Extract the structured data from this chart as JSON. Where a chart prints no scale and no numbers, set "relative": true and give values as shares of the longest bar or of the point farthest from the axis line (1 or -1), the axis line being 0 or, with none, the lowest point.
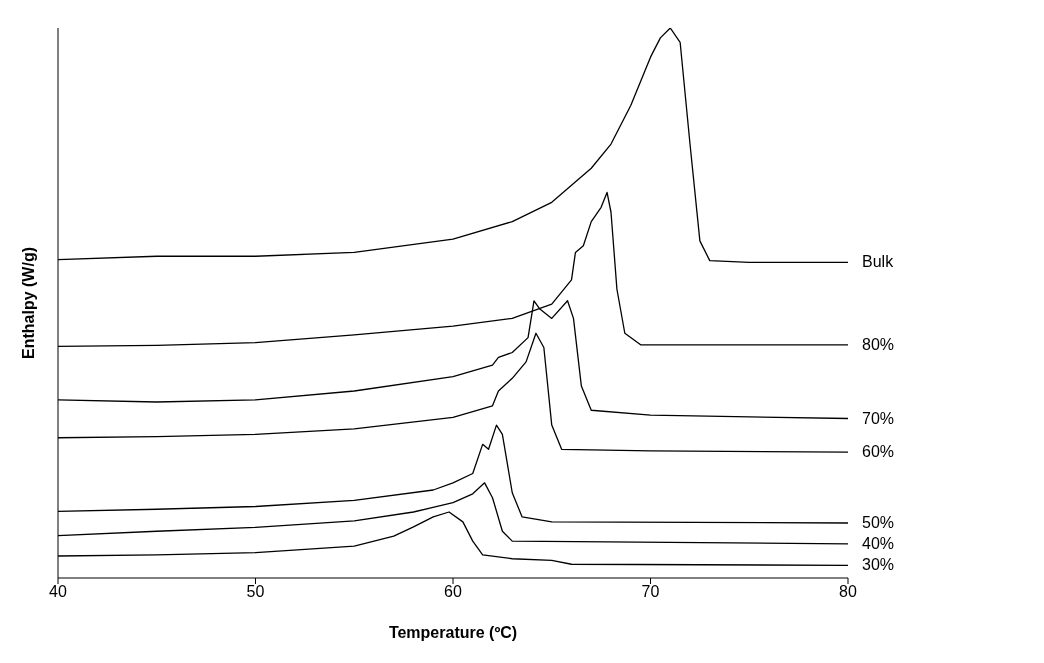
{
  "chart_data": {
    "type": "line",
    "relative": true,
    "xlabel": "Temperature (ºC)",
    "ylabel": "Enthalpy (W/g)",
    "xlim": [
      40,
      80
    ],
    "xticks": [
      40,
      50,
      60,
      70,
      80
    ],
    "grid": false,
    "legend": false,
    "marker": "none",
    "line_style": "solid",
    "series": [
      {
        "name": "Bulk",
        "color": "#000000",
        "x": [
          40,
          45,
          50,
          55,
          60,
          63,
          65,
          67,
          68,
          69,
          70,
          70.5,
          71,
          71.5,
          72,
          72.5,
          73,
          75,
          80
        ],
        "values": [
          0.579,
          0.585,
          0.585,
          0.592,
          0.616,
          0.648,
          0.683,
          0.745,
          0.789,
          0.859,
          0.947,
          0.982,
          1,
          0.974,
          0.789,
          0.613,
          0.577,
          0.574,
          0.574
        ]
      },
      {
        "name": "80%",
        "color": "#000000",
        "x": [
          40,
          45,
          50,
          55,
          60,
          63,
          65,
          66,
          66.2,
          66.6,
          67,
          67.5,
          67.8,
          68,
          68.3,
          68.7,
          69.5,
          72,
          80
        ],
        "values": [
          0.421,
          0.423,
          0.428,
          0.442,
          0.458,
          0.472,
          0.498,
          0.542,
          0.592,
          0.604,
          0.648,
          0.674,
          0.701,
          0.665,
          0.525,
          0.445,
          0.424,
          0.424,
          0.424
        ]
      },
      {
        "name": "70%",
        "color": "#000000",
        "x": [
          40,
          45,
          50,
          55,
          60,
          62,
          62.3,
          63,
          63.8,
          64.1,
          64.4,
          65,
          65.8,
          66.1,
          66.5,
          67,
          70,
          80
        ],
        "values": [
          0.324,
          0.32,
          0.324,
          0.34,
          0.366,
          0.387,
          0.401,
          0.41,
          0.437,
          0.504,
          0.489,
          0.472,
          0.504,
          0.472,
          0.349,
          0.305,
          0.296,
          0.29
        ]
      },
      {
        "name": "60%",
        "color": "#000000",
        "x": [
          40,
          45,
          50,
          55,
          60,
          62,
          62.3,
          63,
          63.7,
          64.2,
          64.6,
          65,
          65.5,
          70,
          80
        ],
        "values": [
          0.255,
          0.257,
          0.261,
          0.271,
          0.292,
          0.313,
          0.34,
          0.363,
          0.393,
          0.445,
          0.419,
          0.278,
          0.234,
          0.231,
          0.229
        ]
      },
      {
        "name": "50%",
        "color": "#000000",
        "x": [
          40,
          45,
          50,
          55,
          59,
          60,
          61,
          61.5,
          61.8,
          62.2,
          62.5,
          63,
          63.5,
          65,
          80
        ],
        "values": [
          0.121,
          0.125,
          0.13,
          0.141,
          0.16,
          0.173,
          0.19,
          0.243,
          0.234,
          0.278,
          0.261,
          0.155,
          0.111,
          0.102,
          0.1
        ]
      },
      {
        "name": "40%",
        "color": "#000000",
        "x": [
          40,
          45,
          50,
          55,
          58,
          60,
          61,
          61.6,
          62,
          62.5,
          63,
          80
        ],
        "values": [
          0.077,
          0.085,
          0.092,
          0.104,
          0.12,
          0.137,
          0.153,
          0.173,
          0.146,
          0.085,
          0.067,
          0.062
        ]
      },
      {
        "name": "30%",
        "color": "#000000",
        "x": [
          40,
          45,
          50,
          55,
          57,
          58,
          59,
          59.8,
          60.5,
          61,
          61.5,
          63,
          65,
          66,
          80
        ],
        "values": [
          0.04,
          0.042,
          0.046,
          0.058,
          0.076,
          0.093,
          0.111,
          0.12,
          0.102,
          0.067,
          0.042,
          0.035,
          0.032,
          0.025,
          0.023
        ]
      }
    ]
  }
}
